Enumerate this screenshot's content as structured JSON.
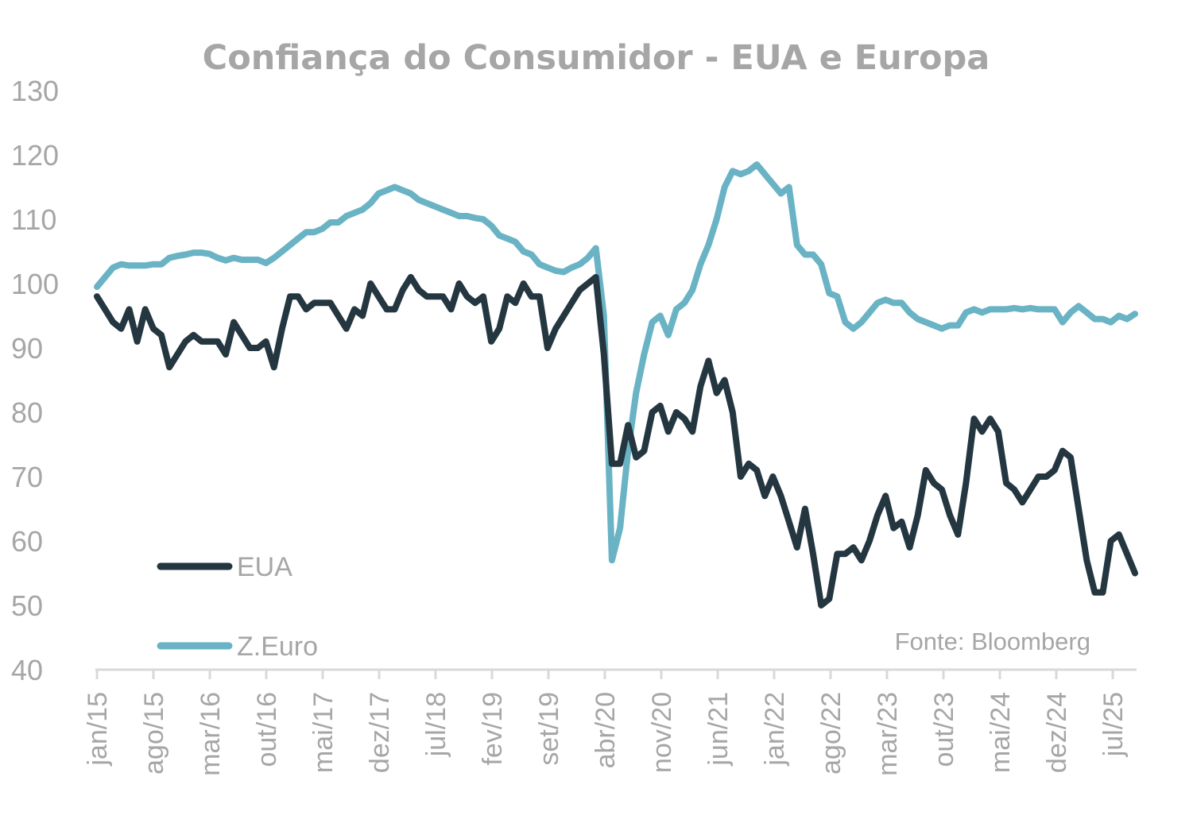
{
  "chart_data": {
    "type": "line",
    "title": "Confiança do Consumidor - EUA e Europa",
    "source_note": "Fonte: Bloomberg",
    "xlabel": "",
    "ylabel": "",
    "ylim": [
      40,
      130
    ],
    "yticks": [
      "130",
      "120",
      "110",
      "100",
      "90",
      "80",
      "70",
      "60",
      "50",
      "40"
    ],
    "xticks": [
      "jan/15",
      "ago/15",
      "mar/16",
      "out/16",
      "mai/17",
      "dez/17",
      "jul/18",
      "fev/19",
      "set/19",
      "abr/20",
      "nov/20",
      "jun/21",
      "jan/22",
      "ago/22",
      "mar/23",
      "out/23",
      "mai/24",
      "dez/24",
      "jul/25"
    ],
    "grid": false,
    "legend_position": "bottom-left",
    "series": [
      {
        "name": "EUA",
        "color": "#243640",
        "points": [
          [
            0,
            98
          ],
          [
            2,
            94
          ],
          [
            3,
            93
          ],
          [
            4,
            96
          ],
          [
            5,
            91
          ],
          [
            6,
            96
          ],
          [
            7,
            93
          ],
          [
            8,
            92
          ],
          [
            9,
            87
          ],
          [
            10,
            89
          ],
          [
            11,
            91
          ],
          [
            12,
            92
          ],
          [
            13,
            91
          ],
          [
            14,
            91
          ],
          [
            15,
            91
          ],
          [
            16,
            89
          ],
          [
            17,
            94
          ],
          [
            18,
            92
          ],
          [
            19,
            90
          ],
          [
            20,
            90
          ],
          [
            21,
            91
          ],
          [
            22,
            87
          ],
          [
            23,
            93
          ],
          [
            24,
            98
          ],
          [
            25,
            98
          ],
          [
            26,
            96
          ],
          [
            27,
            97
          ],
          [
            28,
            97
          ],
          [
            29,
            97
          ],
          [
            30,
            95
          ],
          [
            31,
            93
          ],
          [
            32,
            96
          ],
          [
            33,
            95
          ],
          [
            34,
            100
          ],
          [
            35,
            98
          ],
          [
            36,
            96
          ],
          [
            37,
            96
          ],
          [
            38,
            99
          ],
          [
            39,
            101
          ],
          [
            40,
            99
          ],
          [
            41,
            98
          ],
          [
            42,
            98
          ],
          [
            43,
            98
          ],
          [
            44,
            96
          ],
          [
            45,
            100
          ],
          [
            46,
            98
          ],
          [
            47,
            97
          ],
          [
            48,
            98
          ],
          [
            49,
            91
          ],
          [
            50,
            93
          ],
          [
            51,
            98
          ],
          [
            52,
            97
          ],
          [
            53,
            100
          ],
          [
            54,
            98
          ],
          [
            55,
            98
          ],
          [
            56,
            90
          ],
          [
            57,
            93
          ],
          [
            58,
            95
          ],
          [
            59,
            97
          ],
          [
            60,
            99
          ],
          [
            61,
            100
          ],
          [
            62,
            101
          ],
          [
            63,
            89
          ],
          [
            64,
            72
          ],
          [
            65,
            72
          ],
          [
            66,
            78
          ],
          [
            67,
            73
          ],
          [
            68,
            74
          ],
          [
            69,
            80
          ],
          [
            70,
            81
          ],
          [
            71,
            77
          ],
          [
            72,
            80
          ],
          [
            73,
            79
          ],
          [
            74,
            77
          ],
          [
            75,
            84
          ],
          [
            76,
            88
          ],
          [
            77,
            83
          ],
          [
            78,
            85
          ],
          [
            79,
            80
          ],
          [
            80,
            70
          ],
          [
            81,
            72
          ],
          [
            82,
            71
          ],
          [
            83,
            67
          ],
          [
            84,
            70
          ],
          [
            85,
            67
          ],
          [
            86,
            63
          ],
          [
            87,
            59
          ],
          [
            88,
            65
          ],
          [
            89,
            58
          ],
          [
            90,
            50
          ],
          [
            91,
            51
          ],
          [
            92,
            58
          ],
          [
            93,
            58
          ],
          [
            94,
            59
          ],
          [
            95,
            57
          ],
          [
            96,
            60
          ],
          [
            97,
            64
          ],
          [
            98,
            67
          ],
          [
            99,
            62
          ],
          [
            100,
            63
          ],
          [
            101,
            59
          ],
          [
            102,
            64
          ],
          [
            103,
            71
          ],
          [
            104,
            69
          ],
          [
            105,
            68
          ],
          [
            106,
            64
          ],
          [
            107,
            61
          ],
          [
            108,
            69
          ],
          [
            109,
            79
          ],
          [
            110,
            77
          ],
          [
            111,
            79
          ],
          [
            112,
            77
          ],
          [
            113,
            69
          ],
          [
            114,
            68
          ],
          [
            115,
            66
          ],
          [
            116,
            68
          ],
          [
            117,
            70
          ],
          [
            118,
            70
          ],
          [
            119,
            71
          ],
          [
            120,
            74
          ],
          [
            121,
            73
          ],
          [
            122,
            65
          ],
          [
            123,
            57
          ],
          [
            124,
            52
          ],
          [
            125,
            52
          ],
          [
            126,
            60
          ],
          [
            127,
            61
          ],
          [
            128,
            58
          ],
          [
            129,
            55
          ]
        ]
      },
      {
        "name": "Z.Euro",
        "color": "#69b3c5",
        "points": [
          [
            0,
            99.5
          ],
          [
            1,
            101
          ],
          [
            2,
            102.5
          ],
          [
            3,
            103
          ],
          [
            4,
            102.8
          ],
          [
            5,
            102.8
          ],
          [
            6,
            102.8
          ],
          [
            7,
            103
          ],
          [
            8,
            103
          ],
          [
            9,
            104
          ],
          [
            10,
            104.3
          ],
          [
            11,
            104.5
          ],
          [
            12,
            104.8
          ],
          [
            13,
            104.8
          ],
          [
            14,
            104.6
          ],
          [
            15,
            104
          ],
          [
            16,
            103.6
          ],
          [
            17,
            104
          ],
          [
            18,
            103.7
          ],
          [
            19,
            103.7
          ],
          [
            20,
            103.7
          ],
          [
            21,
            103.2
          ],
          [
            22,
            104
          ],
          [
            23,
            105
          ],
          [
            24,
            106
          ],
          [
            25,
            107
          ],
          [
            26,
            108
          ],
          [
            27,
            108
          ],
          [
            28,
            108.5
          ],
          [
            29,
            109.5
          ],
          [
            30,
            109.5
          ],
          [
            31,
            110.5
          ],
          [
            32,
            111
          ],
          [
            33,
            111.5
          ],
          [
            34,
            112.5
          ],
          [
            35,
            114
          ],
          [
            36,
            114.5
          ],
          [
            37,
            115
          ],
          [
            38,
            114.5
          ],
          [
            39,
            114
          ],
          [
            40,
            113
          ],
          [
            41,
            112.5
          ],
          [
            42,
            112
          ],
          [
            43,
            111.5
          ],
          [
            44,
            111
          ],
          [
            45,
            110.5
          ],
          [
            46,
            110.5
          ],
          [
            47,
            110.2
          ],
          [
            48,
            110
          ],
          [
            49,
            109
          ],
          [
            50,
            107.5
          ],
          [
            51,
            107
          ],
          [
            52,
            106.5
          ],
          [
            53,
            105
          ],
          [
            54,
            104.5
          ],
          [
            55,
            103
          ],
          [
            56,
            102.5
          ],
          [
            57,
            102
          ],
          [
            58,
            101.8
          ],
          [
            59,
            102.5
          ],
          [
            60,
            103
          ],
          [
            61,
            104
          ],
          [
            62,
            105.5
          ],
          [
            63,
            95
          ],
          [
            64,
            57
          ],
          [
            65,
            62
          ],
          [
            66,
            74
          ],
          [
            67,
            83
          ],
          [
            68,
            89
          ],
          [
            69,
            94
          ],
          [
            70,
            95
          ],
          [
            71,
            92
          ],
          [
            72,
            96
          ],
          [
            73,
            97
          ],
          [
            74,
            99
          ],
          [
            75,
            103
          ],
          [
            76,
            106
          ],
          [
            77,
            110
          ],
          [
            78,
            115
          ],
          [
            79,
            117.5
          ],
          [
            80,
            117
          ],
          [
            81,
            117.5
          ],
          [
            82,
            118.5
          ],
          [
            83,
            117
          ],
          [
            84,
            115.5
          ],
          [
            85,
            114
          ],
          [
            86,
            115
          ],
          [
            87,
            106
          ],
          [
            88,
            104.5
          ],
          [
            89,
            104.5
          ],
          [
            90,
            103
          ],
          [
            91,
            98.5
          ],
          [
            92,
            98
          ],
          [
            93,
            94
          ],
          [
            94,
            93
          ],
          [
            95,
            94
          ],
          [
            96,
            95.5
          ],
          [
            97,
            97
          ],
          [
            98,
            97.5
          ],
          [
            99,
            97
          ],
          [
            100,
            97
          ],
          [
            101,
            95.5
          ],
          [
            102,
            94.5
          ],
          [
            103,
            94
          ],
          [
            104,
            93.5
          ],
          [
            105,
            93
          ],
          [
            106,
            93.5
          ],
          [
            107,
            93.5
          ],
          [
            108,
            95.5
          ],
          [
            109,
            96
          ],
          [
            110,
            95.5
          ],
          [
            111,
            96
          ],
          [
            112,
            96
          ],
          [
            113,
            96
          ],
          [
            114,
            96.2
          ],
          [
            115,
            96
          ],
          [
            116,
            96.2
          ],
          [
            117,
            96
          ],
          [
            118,
            96
          ],
          [
            119,
            96
          ],
          [
            120,
            94
          ],
          [
            121,
            95.5
          ],
          [
            122,
            96.5
          ],
          [
            123,
            95.5
          ],
          [
            124,
            94.5
          ],
          [
            125,
            94.5
          ],
          [
            126,
            94
          ],
          [
            127,
            95
          ],
          [
            128,
            94.5
          ],
          [
            129,
            95.3
          ]
        ]
      }
    ]
  }
}
